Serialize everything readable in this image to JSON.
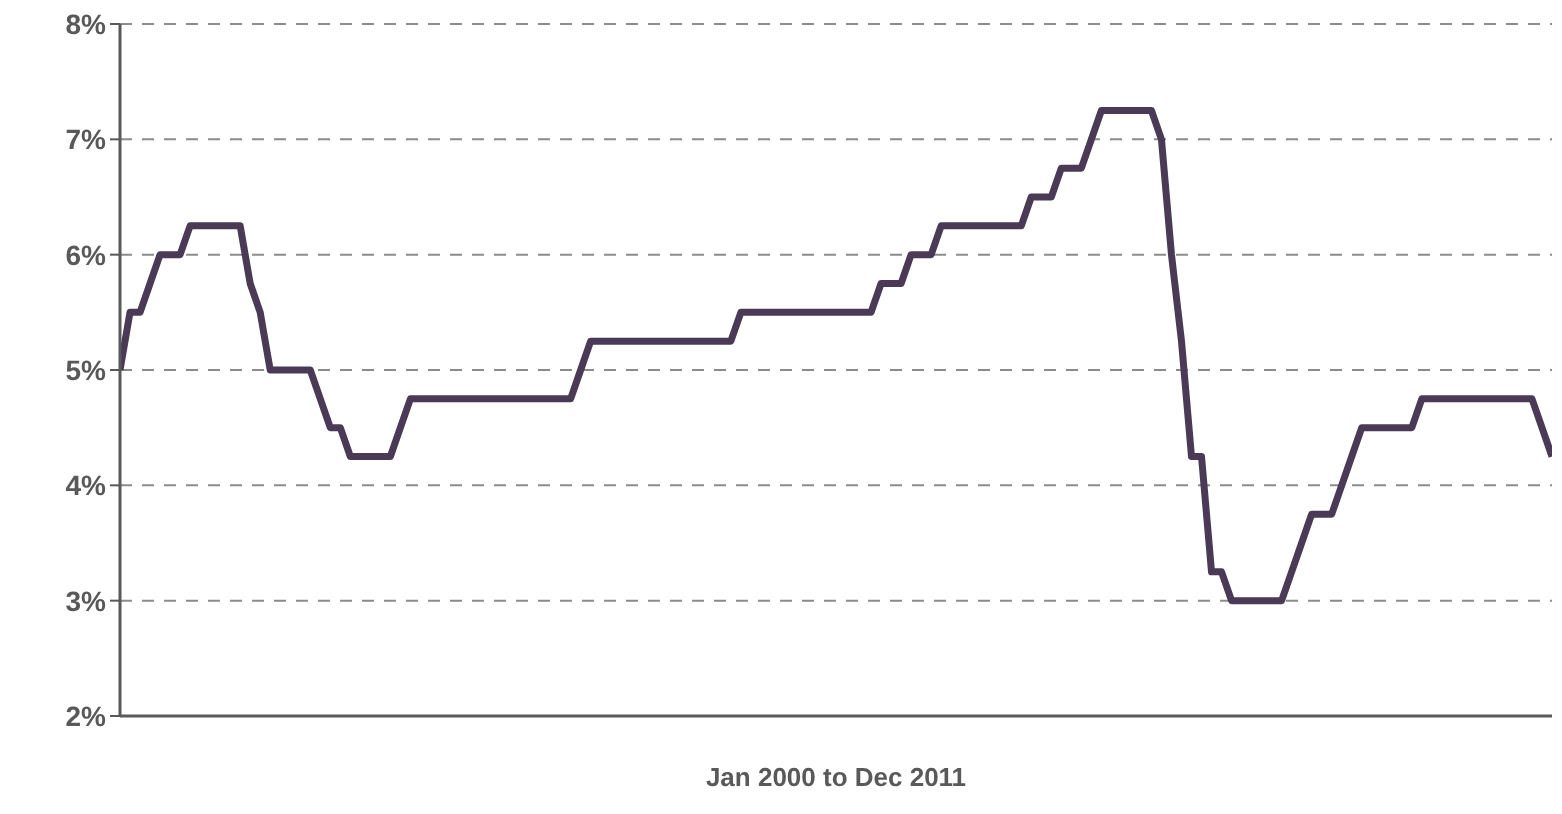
{
  "chart_data": {
    "type": "line",
    "xlabel": "Jan 2000 to Dec 2011",
    "categories": [
      null,
      null,
      null,
      null,
      null,
      null,
      null,
      null,
      null,
      null,
      null,
      null,
      null,
      null,
      null,
      null,
      null,
      null,
      null,
      null,
      null,
      null,
      null,
      null,
      null,
      null,
      null,
      null,
      null,
      null,
      null,
      null,
      null,
      null,
      null,
      null,
      null,
      null,
      null,
      null,
      null,
      null,
      null,
      null,
      null,
      null,
      null,
      null,
      null,
      null,
      null,
      null,
      null,
      null,
      null,
      null,
      null,
      null,
      null,
      null,
      null,
      null,
      null,
      null,
      null,
      null,
      null,
      null,
      null,
      null,
      null,
      null,
      null,
      null,
      null,
      null,
      null,
      null,
      null,
      null,
      null,
      null,
      null,
      null,
      null,
      null,
      null,
      null,
      null,
      null,
      null,
      null,
      null,
      null,
      null,
      null,
      null,
      null,
      null,
      null,
      null,
      null,
      null,
      null,
      null,
      null,
      null,
      null,
      null,
      null,
      null,
      null,
      null,
      null,
      null,
      null,
      null,
      null,
      null,
      null,
      null,
      null,
      null,
      null,
      null,
      null,
      null,
      null,
      null,
      null,
      null,
      null,
      null,
      null,
      null,
      null,
      null,
      null,
      null,
      null,
      null,
      null,
      null,
      null
    ],
    "series": [
      {
        "color": "#4b3a55",
        "values": [
          5.0,
          5.5,
          5.5,
          5.75,
          6.0,
          6.0,
          6.0,
          6.25,
          6.25,
          6.25,
          6.25,
          6.25,
          6.25,
          5.75,
          5.5,
          5.0,
          5.0,
          5.0,
          5.0,
          5.0,
          4.75,
          4.5,
          4.5,
          4.25,
          4.25,
          4.25,
          4.25,
          4.25,
          4.5,
          4.75,
          4.75,
          4.75,
          4.75,
          4.75,
          4.75,
          4.75,
          4.75,
          4.75,
          4.75,
          4.75,
          4.75,
          4.75,
          4.75,
          4.75,
          4.75,
          4.75,
          5.0,
          5.25,
          5.25,
          5.25,
          5.25,
          5.25,
          5.25,
          5.25,
          5.25,
          5.25,
          5.25,
          5.25,
          5.25,
          5.25,
          5.25,
          5.25,
          5.5,
          5.5,
          5.5,
          5.5,
          5.5,
          5.5,
          5.5,
          5.5,
          5.5,
          5.5,
          5.5,
          5.5,
          5.5,
          5.5,
          5.75,
          5.75,
          5.75,
          6.0,
          6.0,
          6.0,
          6.25,
          6.25,
          6.25,
          6.25,
          6.25,
          6.25,
          6.25,
          6.25,
          6.25,
          6.5,
          6.5,
          6.5,
          6.75,
          6.75,
          6.75,
          7.0,
          7.25,
          7.25,
          7.25,
          7.25,
          7.25,
          7.25,
          7.0,
          6.0,
          5.25,
          4.25,
          4.25,
          3.25,
          3.25,
          3.0,
          3.0,
          3.0,
          3.0,
          3.0,
          3.0,
          3.25,
          3.5,
          3.75,
          3.75,
          3.75,
          4.0,
          4.25,
          4.5,
          4.5,
          4.5,
          4.5,
          4.5,
          4.5,
          4.75,
          4.75,
          4.75,
          4.75,
          4.75,
          4.75,
          4.75,
          4.75,
          4.75,
          4.75,
          4.75,
          4.75,
          4.5,
          4.25
        ]
      }
    ],
    "ylim": [
      2,
      8
    ],
    "yticks": [
      {
        "value": 2,
        "label": "2%"
      },
      {
        "value": 3,
        "label": "3%"
      },
      {
        "value": 4,
        "label": "4%"
      },
      {
        "value": 5,
        "label": "5%"
      },
      {
        "value": 6,
        "label": "6%"
      },
      {
        "value": 7,
        "label": "7%"
      },
      {
        "value": 8,
        "label": "8%"
      }
    ],
    "grid": "y",
    "marker": "none",
    "line_style": "solid"
  }
}
